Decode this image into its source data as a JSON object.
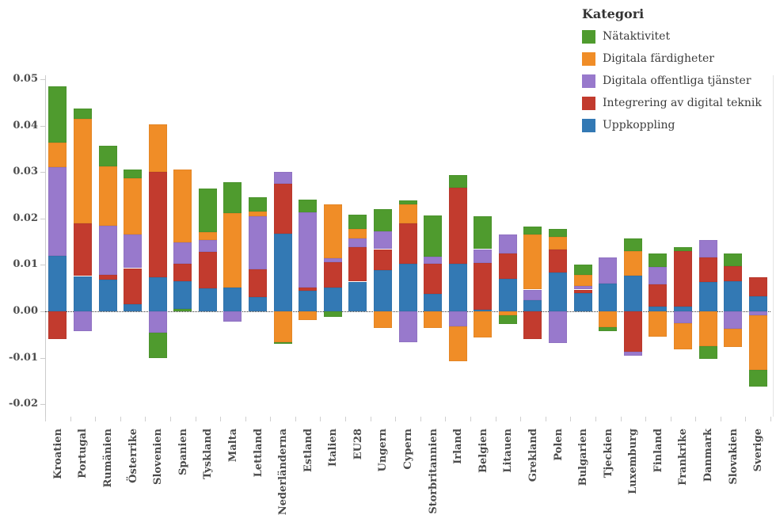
{
  "chart_data": {
    "type": "bar",
    "variant": "diverging-stacked-bar",
    "title": "",
    "legend": {
      "title": "Kategori",
      "position": "top-right",
      "items": [
        {
          "key": "nataktivitet",
          "label": "Nätaktivitet",
          "color": "#4f9b2e"
        },
        {
          "key": "digitala_fardigheter",
          "label": "Digitala färdigheter",
          "color": "#f08d27"
        },
        {
          "key": "digitala_offentliga_tjanster",
          "label": "Digitala offentliga tjänster",
          "color": "#9879cc"
        },
        {
          "key": "integrering_av_digital_teknik",
          "label": "Integrering av digital teknik",
          "color": "#c23b2e"
        },
        {
          "key": "uppkoppling",
          "label": "Uppkoppling",
          "color": "#3379b4"
        }
      ]
    },
    "y_axis": {
      "min": -0.02,
      "max": 0.05,
      "grid": false,
      "ticks": [
        {
          "v": 0.05,
          "label": "0.05"
        },
        {
          "v": 0.04,
          "label": "0.04"
        },
        {
          "v": 0.03,
          "label": "0.03"
        },
        {
          "v": 0.02,
          "label": "0.02"
        },
        {
          "v": 0.01,
          "label": "0.01"
        },
        {
          "v": 0.0,
          "label": "0.00"
        },
        {
          "v": -0.01,
          "label": "-0.01"
        },
        {
          "v": -0.02,
          "label": "-0.02"
        }
      ]
    },
    "note": "segments listed in stacking order outward from zero; positive values stack up, negative stack down",
    "countries": [
      {
        "name": "Kroatien",
        "segments": [
          {
            "k": "uppkoppling",
            "v": 0.012
          },
          {
            "k": "digitala_offentliga_tjanster",
            "v": 0.019
          },
          {
            "k": "digitala_fardigheter",
            "v": 0.0053
          },
          {
            "k": "nataktivitet",
            "v": 0.0122
          },
          {
            "k": "integrering_av_digital_teknik",
            "v": -0.0059
          }
        ]
      },
      {
        "name": "Portugal",
        "segments": [
          {
            "k": "uppkoppling",
            "v": 0.0076
          },
          {
            "k": "integrering_av_digital_teknik",
            "v": 0.0114
          },
          {
            "k": "digitala_fardigheter",
            "v": 0.0224
          },
          {
            "k": "nataktivitet",
            "v": 0.0023
          },
          {
            "k": "digitala_offentliga_tjanster",
            "v": -0.0043
          }
        ]
      },
      {
        "name": "Rumänien",
        "segments": [
          {
            "k": "uppkoppling",
            "v": 0.0068
          },
          {
            "k": "integrering_av_digital_teknik",
            "v": 0.0011
          },
          {
            "k": "digitala_offentliga_tjanster",
            "v": 0.0105
          },
          {
            "k": "digitala_fardigheter",
            "v": 0.0128
          },
          {
            "k": "nataktivitet",
            "v": 0.0045
          }
        ]
      },
      {
        "name": "Österrike",
        "segments": [
          {
            "k": "uppkoppling",
            "v": 0.0016
          },
          {
            "k": "integrering_av_digital_teknik",
            "v": 0.0077
          },
          {
            "k": "digitala_offentliga_tjanster",
            "v": 0.0073
          },
          {
            "k": "digitala_fardigheter",
            "v": 0.012
          },
          {
            "k": "nataktivitet",
            "v": 0.0019
          }
        ]
      },
      {
        "name": "Slovenien",
        "segments": [
          {
            "k": "uppkoppling",
            "v": 0.0073
          },
          {
            "k": "integrering_av_digital_teknik",
            "v": 0.0228
          },
          {
            "k": "digitala_fardigheter",
            "v": 0.0102
          },
          {
            "k": "digitala_offentliga_tjanster",
            "v": -0.0046
          },
          {
            "k": "nataktivitet",
            "v": -0.0054
          }
        ]
      },
      {
        "name": "Spanien",
        "segments": [
          {
            "k": "nataktivitet",
            "v": 0.0005
          },
          {
            "k": "uppkoppling",
            "v": 0.006
          },
          {
            "k": "integrering_av_digital_teknik",
            "v": 0.0037
          },
          {
            "k": "digitala_offentliga_tjanster",
            "v": 0.0046
          },
          {
            "k": "digitala_fardigheter",
            "v": 0.0158
          }
        ]
      },
      {
        "name": "Tyskland",
        "segments": [
          {
            "k": "uppkoppling",
            "v": 0.005
          },
          {
            "k": "integrering_av_digital_teknik",
            "v": 0.0078
          },
          {
            "k": "digitala_offentliga_tjanster",
            "v": 0.0025
          },
          {
            "k": "digitala_fardigheter",
            "v": 0.0017
          },
          {
            "k": "nataktivitet",
            "v": 0.0095
          }
        ]
      },
      {
        "name": "Malta",
        "segments": [
          {
            "k": "uppkoppling",
            "v": 0.0051
          },
          {
            "k": "digitala_fardigheter",
            "v": 0.0161
          },
          {
            "k": "nataktivitet",
            "v": 0.0066
          },
          {
            "k": "digitala_offentliga_tjanster",
            "v": -0.0022
          }
        ]
      },
      {
        "name": "Lettland",
        "segments": [
          {
            "k": "uppkoppling",
            "v": 0.0031
          },
          {
            "k": "integrering_av_digital_teknik",
            "v": 0.0059
          },
          {
            "k": "digitala_offentliga_tjanster",
            "v": 0.0115
          },
          {
            "k": "digitala_fardigheter",
            "v": 0.001
          },
          {
            "k": "nataktivitet",
            "v": 0.0031
          }
        ]
      },
      {
        "name": "Nederländerna",
        "segments": [
          {
            "k": "uppkoppling",
            "v": 0.0167
          },
          {
            "k": "integrering_av_digital_teknik",
            "v": 0.0108
          },
          {
            "k": "digitala_offentliga_tjanster",
            "v": 0.0026
          },
          {
            "k": "digitala_fardigheter",
            "v": -0.0066
          },
          {
            "k": "nataktivitet",
            "v": -0.0004
          }
        ]
      },
      {
        "name": "Estland",
        "segments": [
          {
            "k": "uppkoppling",
            "v": 0.0044
          },
          {
            "k": "integrering_av_digital_teknik",
            "v": 0.0007
          },
          {
            "k": "digitala_offentliga_tjanster",
            "v": 0.0163
          },
          {
            "k": "nataktivitet",
            "v": 0.0027
          },
          {
            "k": "digitala_fardigheter",
            "v": -0.0018
          }
        ]
      },
      {
        "name": "Italien",
        "segments": [
          {
            "k": "uppkoppling",
            "v": 0.0051
          },
          {
            "k": "integrering_av_digital_teknik",
            "v": 0.0055
          },
          {
            "k": "digitala_offentliga_tjanster",
            "v": 0.0009
          },
          {
            "k": "digitala_fardigheter",
            "v": 0.0116
          },
          {
            "k": "nataktivitet",
            "v": -0.0012
          }
        ]
      },
      {
        "name": "EU28",
        "segments": [
          {
            "k": "uppkoppling",
            "v": 0.0064
          },
          {
            "k": "integrering_av_digital_teknik",
            "v": 0.0074
          },
          {
            "k": "digitala_offentliga_tjanster",
            "v": 0.0019
          },
          {
            "k": "digitala_fardigheter",
            "v": 0.0021
          },
          {
            "k": "nataktivitet",
            "v": 0.003
          }
        ]
      },
      {
        "name": "Ungern",
        "segments": [
          {
            "k": "uppkoppling",
            "v": 0.0089
          },
          {
            "k": "integrering_av_digital_teknik",
            "v": 0.0045
          },
          {
            "k": "digitala_offentliga_tjanster",
            "v": 0.0038
          },
          {
            "k": "nataktivitet",
            "v": 0.0049
          },
          {
            "k": "digitala_fardigheter",
            "v": -0.0036
          }
        ]
      },
      {
        "name": "Cypern",
        "segments": [
          {
            "k": "uppkoppling",
            "v": 0.0102
          },
          {
            "k": "integrering_av_digital_teknik",
            "v": 0.0088
          },
          {
            "k": "digitala_fardigheter",
            "v": 0.0041
          },
          {
            "k": "nataktivitet",
            "v": 0.0008
          },
          {
            "k": "digitala_offentliga_tjanster",
            "v": -0.0066
          }
        ]
      },
      {
        "name": "Storbritannien",
        "segments": [
          {
            "k": "uppkoppling",
            "v": 0.0038
          },
          {
            "k": "integrering_av_digital_teknik",
            "v": 0.0064
          },
          {
            "k": "digitala_offentliga_tjanster",
            "v": 0.0015
          },
          {
            "k": "nataktivitet",
            "v": 0.0089
          },
          {
            "k": "digitala_fardigheter",
            "v": -0.0035
          }
        ]
      },
      {
        "name": "Irland",
        "segments": [
          {
            "k": "uppkoppling",
            "v": 0.0102
          },
          {
            "k": "integrering_av_digital_teknik",
            "v": 0.0164
          },
          {
            "k": "nataktivitet",
            "v": 0.0027
          },
          {
            "k": "digitala_offentliga_tjanster",
            "v": -0.0033
          },
          {
            "k": "digitala_fardigheter",
            "v": -0.0074
          }
        ]
      },
      {
        "name": "Belgien",
        "segments": [
          {
            "k": "uppkoppling",
            "v": 0.0004
          },
          {
            "k": "integrering_av_digital_teknik",
            "v": 0.0101
          },
          {
            "k": "digitala_offentliga_tjanster",
            "v": 0.0029
          },
          {
            "k": "nataktivitet",
            "v": 0.0071
          },
          {
            "k": "digitala_fardigheter",
            "v": -0.0056
          }
        ]
      },
      {
        "name": "Litauen",
        "segments": [
          {
            "k": "uppkoppling",
            "v": 0.007
          },
          {
            "k": "integrering_av_digital_teknik",
            "v": 0.0055
          },
          {
            "k": "digitala_offentliga_tjanster",
            "v": 0.0041
          },
          {
            "k": "digitala_fardigheter",
            "v": -0.0008
          },
          {
            "k": "nataktivitet",
            "v": -0.002
          }
        ]
      },
      {
        "name": "Grekland",
        "segments": [
          {
            "k": "uppkoppling",
            "v": 0.0024
          },
          {
            "k": "digitala_offentliga_tjanster",
            "v": 0.0023
          },
          {
            "k": "digitala_fardigheter",
            "v": 0.0118
          },
          {
            "k": "nataktivitet",
            "v": 0.0018
          },
          {
            "k": "integrering_av_digital_teknik",
            "v": -0.006
          }
        ]
      },
      {
        "name": "Polen",
        "segments": [
          {
            "k": "uppkoppling",
            "v": 0.0084
          },
          {
            "k": "integrering_av_digital_teknik",
            "v": 0.0049
          },
          {
            "k": "digitala_fardigheter",
            "v": 0.0028
          },
          {
            "k": "nataktivitet",
            "v": 0.0017
          },
          {
            "k": "digitala_offentliga_tjanster",
            "v": -0.0068
          }
        ]
      },
      {
        "name": "Bulgarien",
        "segments": [
          {
            "k": "uppkoppling",
            "v": 0.0039
          },
          {
            "k": "integrering_av_digital_teknik",
            "v": 0.0008
          },
          {
            "k": "digitala_offentliga_tjanster",
            "v": 0.0007
          },
          {
            "k": "digitala_fardigheter",
            "v": 0.0024
          },
          {
            "k": "nataktivitet",
            "v": 0.0023
          }
        ]
      },
      {
        "name": "Tjeckien",
        "segments": [
          {
            "k": "uppkoppling",
            "v": 0.0059
          },
          {
            "k": "digitala_offentliga_tjanster",
            "v": 0.0057
          },
          {
            "k": "digitala_fardigheter",
            "v": -0.0034
          },
          {
            "k": "nataktivitet",
            "v": -0.0009
          }
        ]
      },
      {
        "name": "Luxemburg",
        "segments": [
          {
            "k": "uppkoppling",
            "v": 0.0077
          },
          {
            "k": "digitala_fardigheter",
            "v": 0.0053
          },
          {
            "k": "nataktivitet",
            "v": 0.0027
          },
          {
            "k": "integrering_av_digital_teknik",
            "v": -0.0087
          },
          {
            "k": "digitala_offentliga_tjanster",
            "v": -0.0008
          }
        ]
      },
      {
        "name": "Finland",
        "segments": [
          {
            "k": "uppkoppling",
            "v": 0.0011
          },
          {
            "k": "integrering_av_digital_teknik",
            "v": 0.0047
          },
          {
            "k": "digitala_offentliga_tjanster",
            "v": 0.0038
          },
          {
            "k": "nataktivitet",
            "v": 0.0028
          },
          {
            "k": "digitala_fardigheter",
            "v": -0.0055
          }
        ]
      },
      {
        "name": "Frankrike",
        "segments": [
          {
            "k": "uppkoppling",
            "v": 0.001
          },
          {
            "k": "integrering_av_digital_teknik",
            "v": 0.0119
          },
          {
            "k": "nataktivitet",
            "v": 0.0009
          },
          {
            "k": "digitala_offentliga_tjanster",
            "v": -0.0025
          },
          {
            "k": "digitala_fardigheter",
            "v": -0.0057
          }
        ]
      },
      {
        "name": "Danmark",
        "segments": [
          {
            "k": "uppkoppling",
            "v": 0.0063
          },
          {
            "k": "integrering_av_digital_teknik",
            "v": 0.0053
          },
          {
            "k": "digitala_offentliga_tjanster",
            "v": 0.0038
          },
          {
            "k": "digitala_fardigheter",
            "v": -0.0075
          },
          {
            "k": "nataktivitet",
            "v": -0.0028
          }
        ]
      },
      {
        "name": "Slovakien",
        "segments": [
          {
            "k": "uppkoppling",
            "v": 0.0065
          },
          {
            "k": "integrering_av_digital_teknik",
            "v": 0.0032
          },
          {
            "k": "nataktivitet",
            "v": 0.0028
          },
          {
            "k": "digitala_offentliga_tjanster",
            "v": -0.0037
          },
          {
            "k": "digitala_fardigheter",
            "v": -0.004
          }
        ]
      },
      {
        "name": "Sverige",
        "segments": [
          {
            "k": "uppkoppling",
            "v": 0.0032
          },
          {
            "k": "integrering_av_digital_teknik",
            "v": 0.0041
          },
          {
            "k": "digitala_offentliga_tjanster",
            "v": -0.0008
          },
          {
            "k": "digitala_fardigheter",
            "v": -0.0118
          },
          {
            "k": "nataktivitet",
            "v": -0.0037
          }
        ]
      }
    ]
  }
}
